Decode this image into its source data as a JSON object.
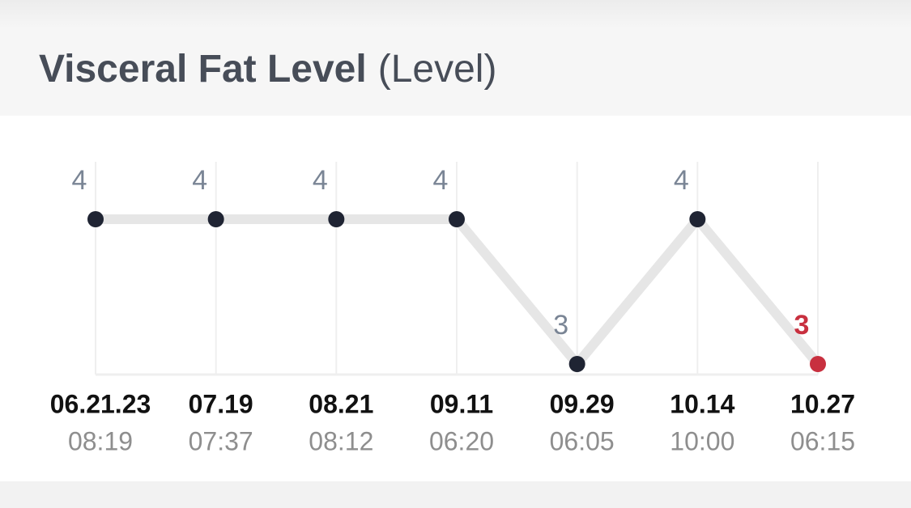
{
  "chart_data": {
    "type": "line",
    "title": "Visceral Fat Level",
    "unit": "(Level)",
    "categories": [
      "06.21.23",
      "07.19",
      "08.21",
      "09.11",
      "09.29",
      "10.14",
      "10.27"
    ],
    "times": [
      "08:19",
      "07:37",
      "08:12",
      "06:20",
      "06:05",
      "10:00",
      "06:15"
    ],
    "values": [
      4,
      4,
      4,
      4,
      3,
      4,
      3
    ],
    "ylim": [
      3,
      4
    ],
    "line_color": "#e6e6e6",
    "point_color": "#1f2433",
    "highlight_color": "#c8303f",
    "grid": true
  }
}
